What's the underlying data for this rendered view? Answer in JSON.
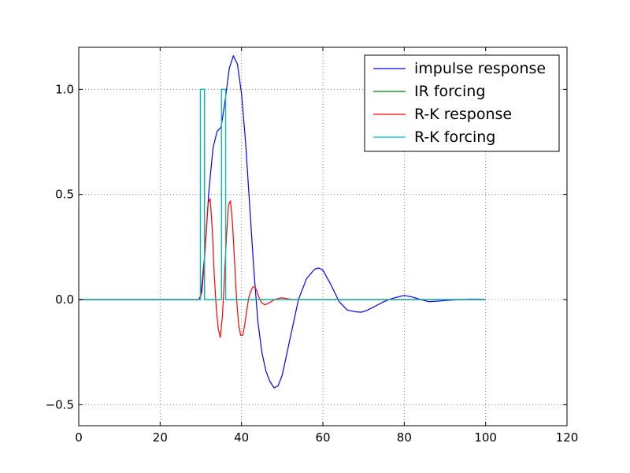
{
  "chart_data": {
    "type": "line",
    "title": "",
    "xlabel": "",
    "ylabel": "",
    "xlim": [
      0,
      120
    ],
    "ylim": [
      -0.6,
      1.2
    ],
    "xticks": [
      0,
      20,
      40,
      60,
      80,
      100,
      120
    ],
    "xtick_labels": [
      "0",
      "20",
      "40",
      "60",
      "80",
      "100",
      "120"
    ],
    "yticks": [
      -0.5,
      0.0,
      0.5,
      1.0
    ],
    "ytick_labels": [
      "−0.5",
      "0.0",
      "0.5",
      "1.0"
    ],
    "grid": true,
    "legend_position": "top-right",
    "series": [
      {
        "name": "impulse response",
        "color": "#0000ff",
        "x": [
          0,
          29.5,
          30,
          31,
          32,
          33,
          34,
          35,
          36,
          37,
          38,
          39,
          40,
          41,
          42,
          43,
          44,
          45,
          46,
          47,
          48,
          49,
          50,
          52,
          54,
          56,
          58,
          59,
          60,
          62,
          64,
          66,
          68,
          69.5,
          71,
          73,
          75,
          77,
          80,
          82,
          84,
          86,
          88,
          90,
          92,
          94,
          96,
          98,
          100
        ],
        "y": [
          0,
          0,
          0.02,
          0.22,
          0.52,
          0.72,
          0.8,
          0.82,
          0.95,
          1.1,
          1.16,
          1.12,
          0.98,
          0.75,
          0.45,
          0.15,
          -0.1,
          -0.25,
          -0.34,
          -0.39,
          -0.42,
          -0.41,
          -0.36,
          -0.18,
          0.0,
          0.1,
          0.145,
          0.15,
          0.14,
          0.07,
          -0.01,
          -0.05,
          -0.058,
          -0.06,
          -0.05,
          -0.03,
          -0.01,
          0.005,
          0.02,
          0.012,
          0.0,
          -0.01,
          -0.008,
          -0.005,
          -0.002,
          0.0,
          0.002,
          0.002,
          0.0
        ]
      },
      {
        "name": "IR forcing",
        "color": "#008000",
        "x": [
          0,
          29.9,
          29.9,
          30.9,
          30.9,
          35.1,
          35.1,
          36.1,
          36.1,
          100
        ],
        "y": [
          0,
          0,
          1,
          1,
          0,
          0,
          1,
          1,
          0,
          0
        ]
      },
      {
        "name": "R-K response",
        "color": "#ff0000",
        "x": [
          0,
          29.8,
          30.3,
          30.8,
          31.3,
          31.8,
          32.3,
          32.8,
          33.3,
          33.8,
          34.3,
          34.8,
          35.3,
          35.8,
          36.3,
          36.8,
          37.3,
          37.8,
          38.3,
          38.8,
          39.3,
          39.8,
          40.3,
          40.8,
          41.3,
          41.8,
          42.3,
          42.8,
          43.3,
          43.8,
          44.3,
          44.8,
          45.3,
          45.8,
          46.3,
          46.8,
          47.3,
          47.8,
          48.8,
          49.8,
          50.8,
          51.8,
          53,
          55,
          60,
          100
        ],
        "y": [
          0,
          0,
          0.04,
          0.16,
          0.32,
          0.46,
          0.48,
          0.34,
          0.12,
          -0.04,
          -0.14,
          -0.18,
          -0.08,
          0.1,
          0.3,
          0.45,
          0.47,
          0.36,
          0.18,
          0.0,
          -0.12,
          -0.17,
          -0.17,
          -0.12,
          -0.05,
          0.01,
          0.04,
          0.06,
          0.06,
          0.04,
          0.01,
          -0.01,
          -0.02,
          -0.025,
          -0.02,
          -0.015,
          -0.01,
          -0.004,
          0.004,
          0.008,
          0.006,
          0.002,
          0.0,
          0.0,
          0.0,
          0.0
        ]
      },
      {
        "name": "R-K forcing",
        "color": "#00bfbf",
        "x": [
          0,
          29.9,
          29.9,
          30.9,
          30.9,
          35.1,
          35.1,
          36.1,
          36.1,
          100
        ],
        "y": [
          0,
          0,
          1,
          1,
          0,
          0,
          1,
          1,
          0,
          0
        ]
      }
    ]
  }
}
